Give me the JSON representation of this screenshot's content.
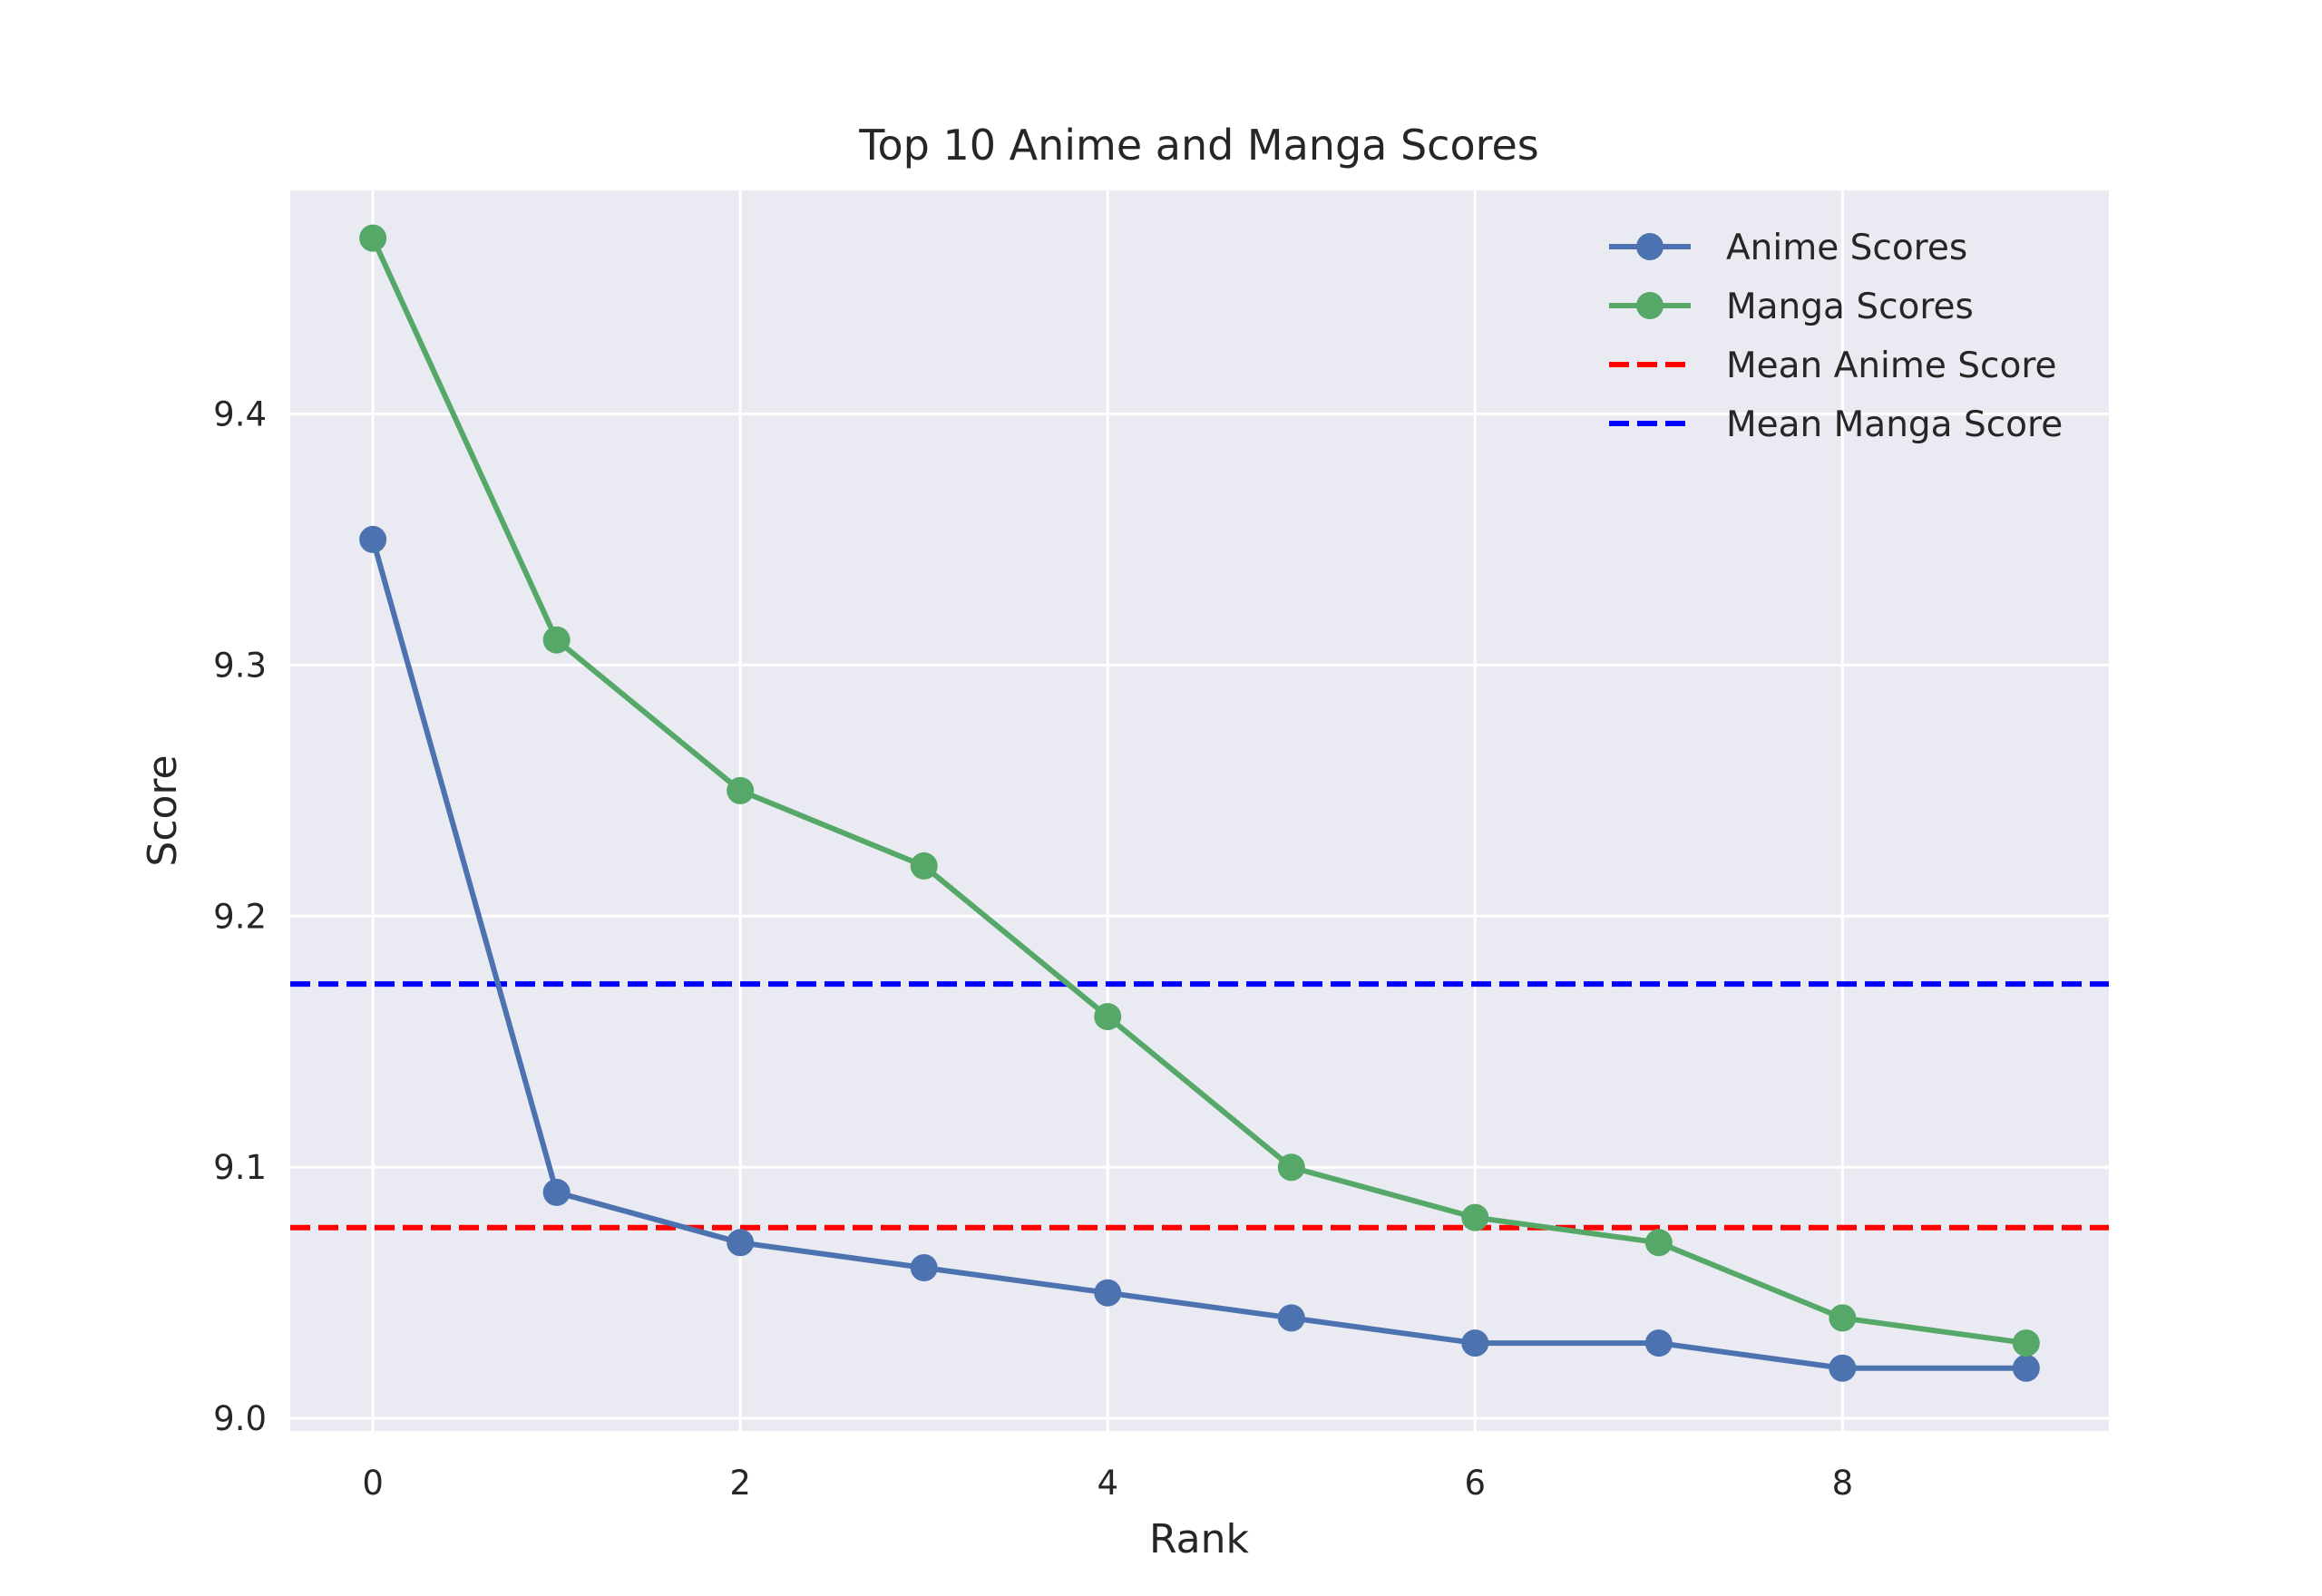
{
  "chart_data": {
    "type": "line",
    "title": "Top 10 Anime and Manga Scores",
    "xlabel": "Rank",
    "ylabel": "Score",
    "x": [
      0,
      1,
      2,
      3,
      4,
      5,
      6,
      7,
      8,
      9
    ],
    "xlim": [
      -0.45,
      9.45
    ],
    "ylim": [
      8.995,
      9.489
    ],
    "xticks": [
      0,
      2,
      4,
      6,
      8
    ],
    "yticks": [
      9.0,
      9.1,
      9.2,
      9.3,
      9.4
    ],
    "xtick_labels": [
      "0",
      "2",
      "4",
      "6",
      "8"
    ],
    "ytick_labels": [
      "9.0",
      "9.1",
      "9.2",
      "9.3",
      "9.4"
    ],
    "grid": true,
    "legend_position": "top-right",
    "background_color": "#EAEAF2",
    "series": [
      {
        "name": "Anime Scores",
        "style": "line-marker",
        "color": "#4C72B0",
        "values": [
          9.35,
          9.09,
          9.07,
          9.06,
          9.05,
          9.04,
          9.03,
          9.03,
          9.02,
          9.02
        ]
      },
      {
        "name": "Manga Scores",
        "style": "line-marker",
        "color": "#55A868",
        "values": [
          9.47,
          9.31,
          9.25,
          9.22,
          9.16,
          9.1,
          9.08,
          9.07,
          9.04,
          9.03
        ]
      }
    ],
    "hlines": [
      {
        "name": "Mean Anime Score",
        "value": 9.076,
        "color": "#FF0000",
        "style": "dashed"
      },
      {
        "name": "Mean Manga Score",
        "value": 9.173,
        "color": "#0000FF",
        "style": "dashed"
      }
    ]
  }
}
